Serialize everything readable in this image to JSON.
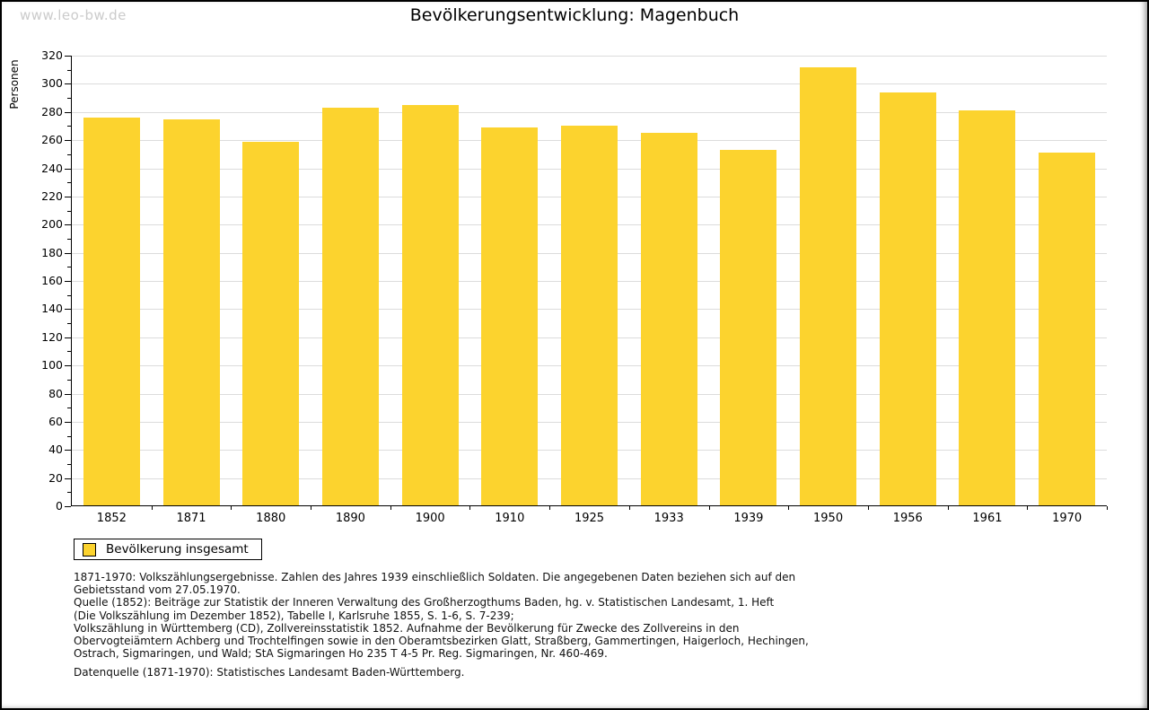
{
  "page": {
    "watermark": "www.leo-bw.de",
    "title": "Bevölkerungsentwicklung: Magenbuch"
  },
  "chart_data": {
    "type": "bar",
    "title": "Bevölkerungsentwicklung: Magenbuch",
    "xlabel": "",
    "ylabel": "Personen",
    "categories": [
      "1852",
      "1871",
      "1880",
      "1890",
      "1900",
      "1910",
      "1925",
      "1933",
      "1939",
      "1950",
      "1956",
      "1961",
      "1970"
    ],
    "values": [
      276,
      275,
      259,
      283,
      285,
      269,
      270,
      265,
      253,
      312,
      294,
      281,
      251
    ],
    "series_name": "Bevölkerung insgesamt",
    "ylim": [
      0,
      320
    ],
    "ytick_step": 20,
    "yminor_step": 10,
    "grid": true,
    "legend": {
      "label": "Bevölkerung insgesamt",
      "position": "bottom-left"
    }
  },
  "colors": {
    "bar": "#fcd32e",
    "grid": "#dcdcdc",
    "axis": "#000000",
    "watermark": "#cbcbcb"
  },
  "footnotes": {
    "lines": [
      "1871-1970: Volkszählungsergebnisse. Zahlen des Jahres 1939 einschließlich Soldaten. Die angegebenen Daten beziehen sich auf den",
      "Gebietsstand vom 27.05.1970.",
      "Quelle (1852): Beiträge zur Statistik der Inneren Verwaltung des Großherzogthums Baden, hg. v. Statistischen Landesamt, 1. Heft",
      "(Die Volkszählung im Dezember 1852), Tabelle I, Karlsruhe 1855, S. 1-6, S. 7-239;",
      "Volkszählung in Württemberg (CD), Zollvereinsstatistik 1852. Aufnahme der Bevölkerung für Zwecke des Zollvereins in den",
      "Obervogteiämtern Achberg und Trochtelfingen sowie in den Oberamtsbezirken Glatt, Straßberg, Gammertingen, Haigerloch, Hechingen,",
      "Ostrach, Sigmaringen, und Wald; StA Sigmaringen Ho 235 T 4-5 Pr. Reg. Sigmaringen, Nr. 460-469."
    ],
    "datasource": "Datenquelle (1871-1970): Statistisches Landesamt Baden-Württemberg."
  }
}
